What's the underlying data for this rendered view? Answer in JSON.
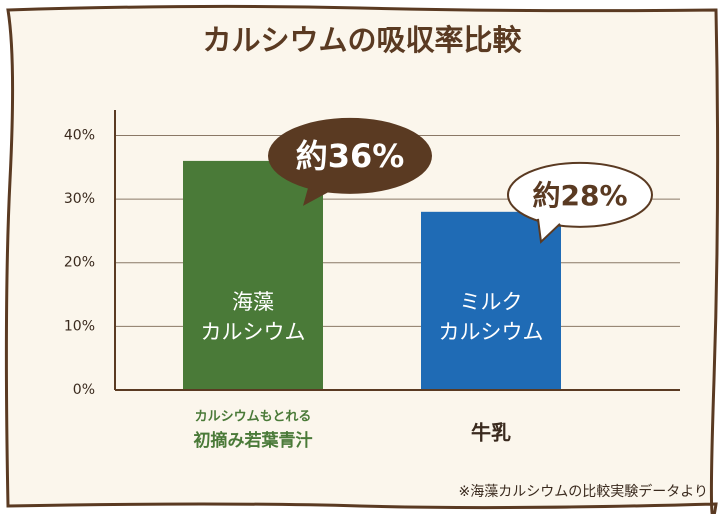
{
  "chart_data": {
    "type": "bar",
    "title": "カルシウムの吸収率比較",
    "categories": [
      [
        "カルシウムもとれる",
        "初摘み若葉青汁"
      ],
      [
        "牛乳"
      ]
    ],
    "category_label_colors": [
      "#4a7a38",
      "#3a2a1e"
    ],
    "bar_labels": [
      [
        "海藻",
        "カルシウム"
      ],
      [
        "ミルク",
        "カルシウム"
      ]
    ],
    "values": [
      36,
      28
    ],
    "value_labels": [
      "約36%",
      "約28%"
    ],
    "colors": [
      "#4a7a38",
      "#1f6bb5"
    ],
    "ylim": [
      0,
      44
    ],
    "yticks": [
      {
        "value": 0,
        "label": "0%"
      },
      {
        "value": 10,
        "label": "10%"
      },
      {
        "value": 20,
        "label": "20%"
      },
      {
        "value": 30,
        "label": "30%"
      },
      {
        "value": 40,
        "label": "40%"
      }
    ],
    "grid": true,
    "footnote": "※海藻カルシウムの比較実験データより"
  }
}
